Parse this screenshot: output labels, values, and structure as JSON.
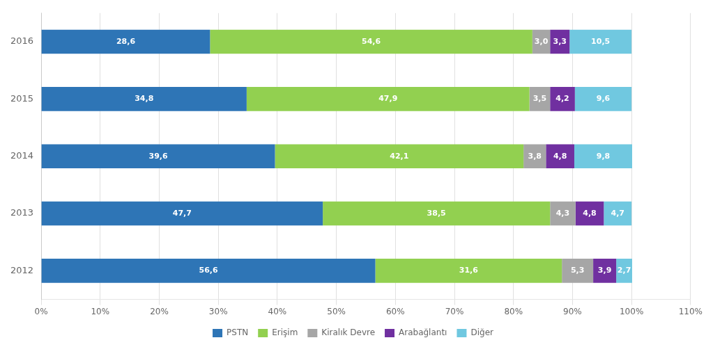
{
  "chart_data": {
    "type": "bar",
    "orientation": "horizontal",
    "stacked": true,
    "categories": [
      "2016",
      "2015",
      "2014",
      "2013",
      "2012"
    ],
    "series": [
      {
        "name": "PSTN",
        "color": "#2E75B6",
        "values": [
          28.6,
          34.8,
          39.6,
          47.7,
          56.6
        ],
        "value_labels": [
          "28,6",
          "34,8",
          "39,6",
          "47,7",
          "56,6"
        ]
      },
      {
        "name": "Erişim",
        "color": "#92D050",
        "values": [
          54.6,
          47.9,
          42.1,
          38.5,
          31.6
        ],
        "value_labels": [
          "54,6",
          "47,9",
          "42,1",
          "38,5",
          "31,6"
        ]
      },
      {
        "name": "Kiralık Devre",
        "color": "#A6A6A6",
        "values": [
          3.0,
          3.5,
          3.8,
          4.3,
          5.3
        ],
        "value_labels": [
          "3,0",
          "3,5",
          "3,8",
          "4,3",
          "5,3"
        ]
      },
      {
        "name": "Arabağlantı",
        "color": "#7030A0",
        "values": [
          3.3,
          4.2,
          4.8,
          4.8,
          3.9
        ],
        "value_labels": [
          "3,3",
          "4,2",
          "4,8",
          "4,8",
          "3,9"
        ]
      },
      {
        "name": "Diğer",
        "color": "#70C8E0",
        "values": [
          10.5,
          9.6,
          9.8,
          4.7,
          2.7
        ],
        "value_labels": [
          "10,5",
          "9,6",
          "9,8",
          "4,7",
          "2,7"
        ]
      }
    ],
    "xlim": [
      0,
      110
    ],
    "xticks": [
      {
        "value": 0,
        "label": "0%"
      },
      {
        "value": 10,
        "label": "10%"
      },
      {
        "value": 20,
        "label": "20%"
      },
      {
        "value": 30,
        "label": "30%"
      },
      {
        "value": 40,
        "label": "40%"
      },
      {
        "value": 50,
        "label": "50%"
      },
      {
        "value": 60,
        "label": "60%"
      },
      {
        "value": 70,
        "label": "70%"
      },
      {
        "value": 80,
        "label": "80%"
      },
      {
        "value": 90,
        "label": "90%"
      },
      {
        "value": 100,
        "label": "100%"
      },
      {
        "value": 110,
        "label": "110%"
      }
    ],
    "grid": true,
    "legend": "bottom",
    "data_labels": true
  }
}
